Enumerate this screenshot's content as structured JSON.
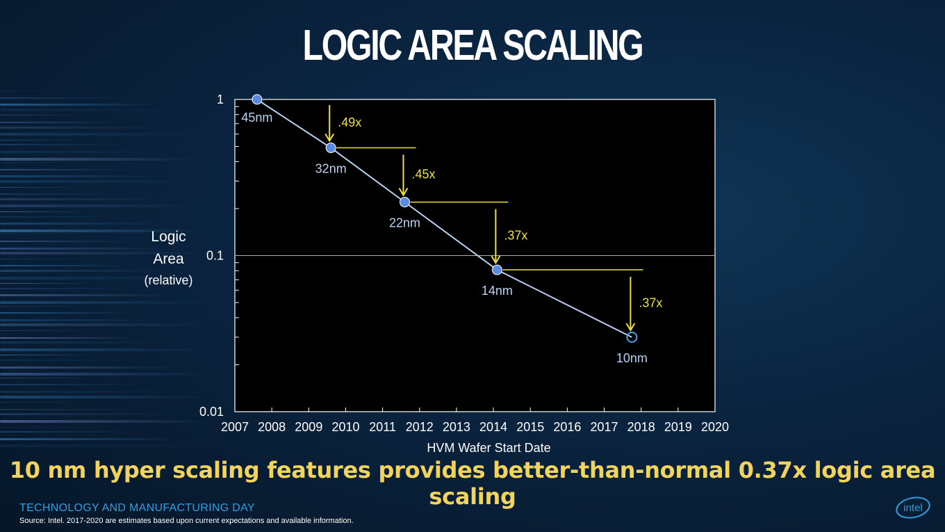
{
  "slide": {
    "title": "LOGIC AREA SCALING",
    "tagline": "10 nm hyper scaling features provides better-than-normal 0.37x logic area scaling",
    "event": "TECHNOLOGY AND MANUFACTURING DAY",
    "source": "Source: Intel. 2017-2020 are estimates based upon current expectations and available information.",
    "logo_text": "intel"
  },
  "chart_data": {
    "type": "line",
    "xlabel": "HVM Wafer Start Date",
    "ylabel": [
      "Logic",
      "Area",
      "(relative)"
    ],
    "xlim": [
      2007,
      2020
    ],
    "ylim": [
      0.01,
      1
    ],
    "yscale": "log",
    "xticks": [
      "2007",
      "2008",
      "2009",
      "2010",
      "2011",
      "2012",
      "2013",
      "2014",
      "2015",
      "2016",
      "2017",
      "2018",
      "2019",
      "2020"
    ],
    "yticks": [
      "1",
      "0.1",
      "0.01"
    ],
    "grid": "horizontal line at 0.1",
    "points": [
      {
        "label": "45nm",
        "x": 2007.6,
        "y": 1.0,
        "estimate": false
      },
      {
        "label": "32nm",
        "x": 2009.6,
        "y": 0.49,
        "estimate": false
      },
      {
        "label": "22nm",
        "x": 2011.6,
        "y": 0.22,
        "estimate": false
      },
      {
        "label": "14nm",
        "x": 2014.1,
        "y": 0.081,
        "estimate": false
      },
      {
        "label": "10nm",
        "x": 2017.75,
        "y": 0.03,
        "estimate": true
      }
    ],
    "annotations": [
      ".49x",
      ".45x",
      ".37x",
      ".37x"
    ],
    "colors": {
      "line": "#b8d4f2",
      "marker": "#5b8be0",
      "annotation": "#f0e23a",
      "plot_bg": "#000000",
      "label": "#b8d4f2"
    }
  }
}
